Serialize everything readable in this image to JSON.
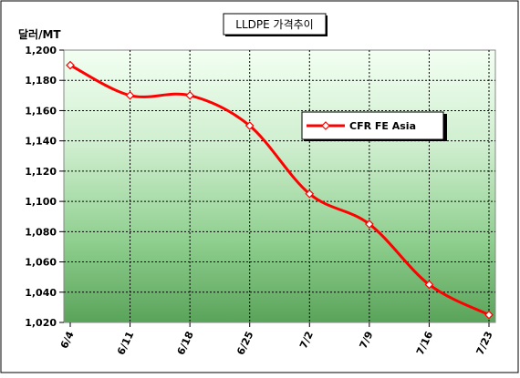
{
  "chart_data": {
    "type": "line",
    "title": "LLDPE 가격추이",
    "ylabel": "달러/MT",
    "xlabel": "",
    "categories": [
      "6/4",
      "6/11",
      "6/18",
      "6/25",
      "7/2",
      "7/9",
      "7/16",
      "7/23"
    ],
    "series": [
      {
        "name": "CFR FE Asia",
        "values": [
          1190,
          1170,
          1170,
          1150,
          1105,
          1085,
          1045,
          1025
        ],
        "color": "#ff0000"
      }
    ],
    "ylim": [
      1020,
      1200
    ],
    "yticks": [
      "1,020",
      "1,040",
      "1,060",
      "1,080",
      "1,100",
      "1,120",
      "1,140",
      "1,160",
      "1,180",
      "1,200"
    ],
    "grid": true,
    "legend_placement": "right",
    "smooth": true
  }
}
